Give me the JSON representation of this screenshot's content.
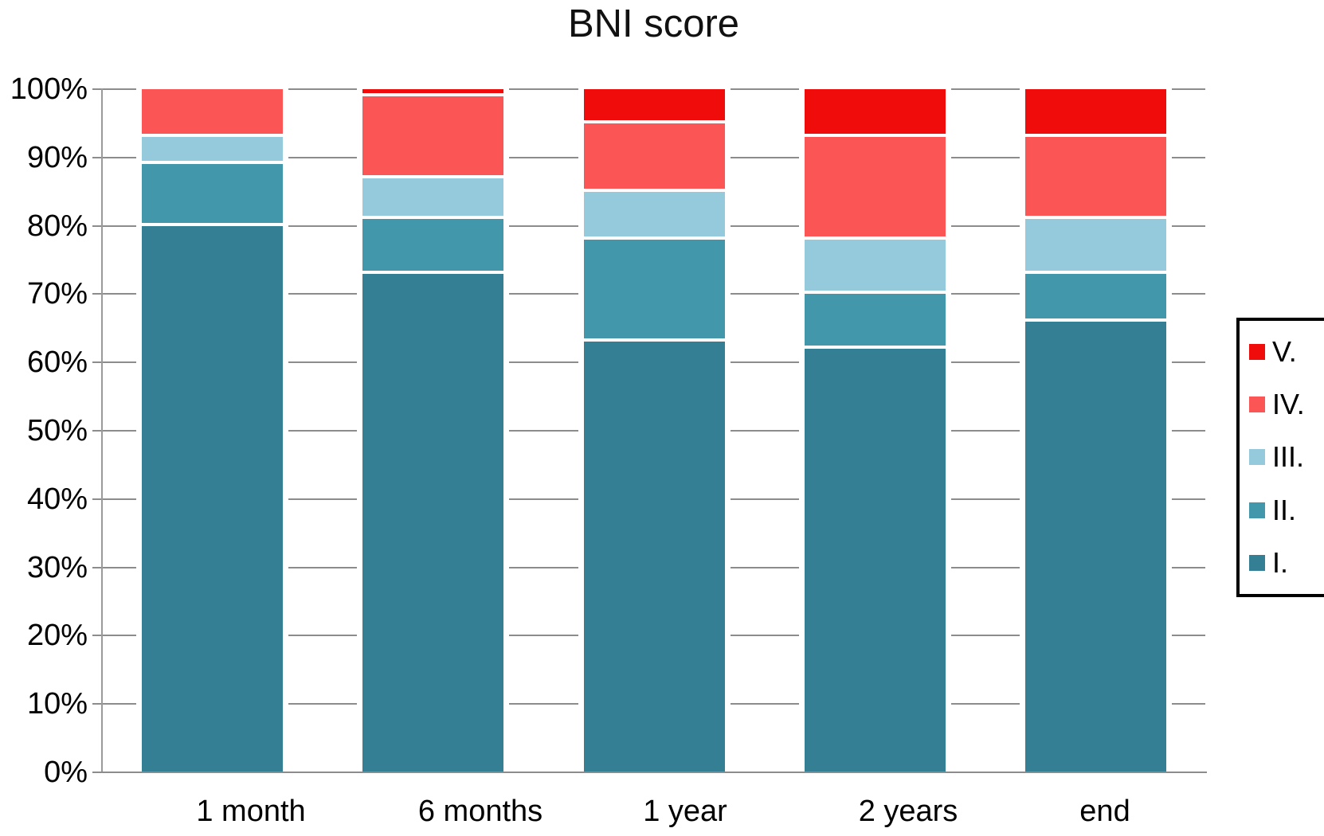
{
  "title": "BNI score",
  "colors": {
    "gridline": "#8c8c8c",
    "axis_line": "#9a9a9a",
    "background": "#ffffff",
    "legend_border": "#000000",
    "series_I": "#347f93",
    "series_II": "#4397ab",
    "series_III": "#94cadc",
    "series_IV": "#fb5555",
    "series_V": "#f10c0c"
  },
  "chart_data": {
    "type": "bar",
    "subtype": "stacked-percentage-column",
    "title": "BNI score",
    "categories": [
      "1 month",
      "6 months",
      "1 year",
      "2 years",
      "end"
    ],
    "series": [
      {
        "name": "I.",
        "color": "#347f93",
        "values": [
          80,
          73,
          63,
          62,
          66
        ]
      },
      {
        "name": "II.",
        "color": "#4397ab",
        "values": [
          9,
          8,
          15,
          8,
          7
        ]
      },
      {
        "name": "III.",
        "color": "#94cadc",
        "values": [
          4,
          6,
          7,
          8,
          8
        ]
      },
      {
        "name": "IV.",
        "color": "#fb5555",
        "values": [
          7,
          12,
          10,
          15,
          12
        ]
      },
      {
        "name": "V.",
        "color": "#f10c0c",
        "values": [
          0,
          1,
          5,
          7,
          7
        ]
      }
    ],
    "y_ticks": [
      {
        "value": 0,
        "label": "0%"
      },
      {
        "value": 10,
        "label": "10%"
      },
      {
        "value": 20,
        "label": "20%"
      },
      {
        "value": 30,
        "label": "30%"
      },
      {
        "value": 40,
        "label": "40%"
      },
      {
        "value": 50,
        "label": "50%"
      },
      {
        "value": 60,
        "label": "60%"
      },
      {
        "value": 70,
        "label": "70%"
      },
      {
        "value": 80,
        "label": "80%"
      },
      {
        "value": 90,
        "label": "90%"
      },
      {
        "value": 100,
        "label": "100%"
      }
    ],
    "xlabel": "",
    "ylabel": "",
    "ylim": [
      0,
      100
    ],
    "grid": true,
    "legend_position": "right",
    "legend_order": [
      "V.",
      "IV.",
      "III.",
      "II.",
      "I."
    ]
  }
}
